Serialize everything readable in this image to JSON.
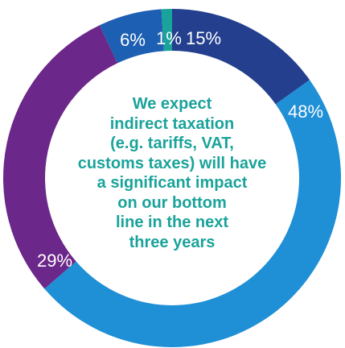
{
  "chart_data": {
    "type": "pie",
    "variant": "donut",
    "title": "",
    "center_text_lines": [
      "We expect",
      "indirect taxation",
      "(e.g. tariffs, VAT,",
      "customs taxes) will have",
      "a significant impact",
      "on our bottom",
      "line in the next",
      "three years"
    ],
    "slices": [
      {
        "label": "15%",
        "value": 15,
        "color": "#233f8e"
      },
      {
        "label": "48%",
        "value": 48,
        "color": "#1f8fd6"
      },
      {
        "label": "29%",
        "value": 29,
        "color": "#6b2789"
      },
      {
        "label": "6%",
        "value": 6,
        "color": "#1d5fb2"
      },
      {
        "label": "1%",
        "value": 1,
        "color": "#1aa39a"
      }
    ],
    "center_text_color": "#1aa39a",
    "legend": "none"
  }
}
